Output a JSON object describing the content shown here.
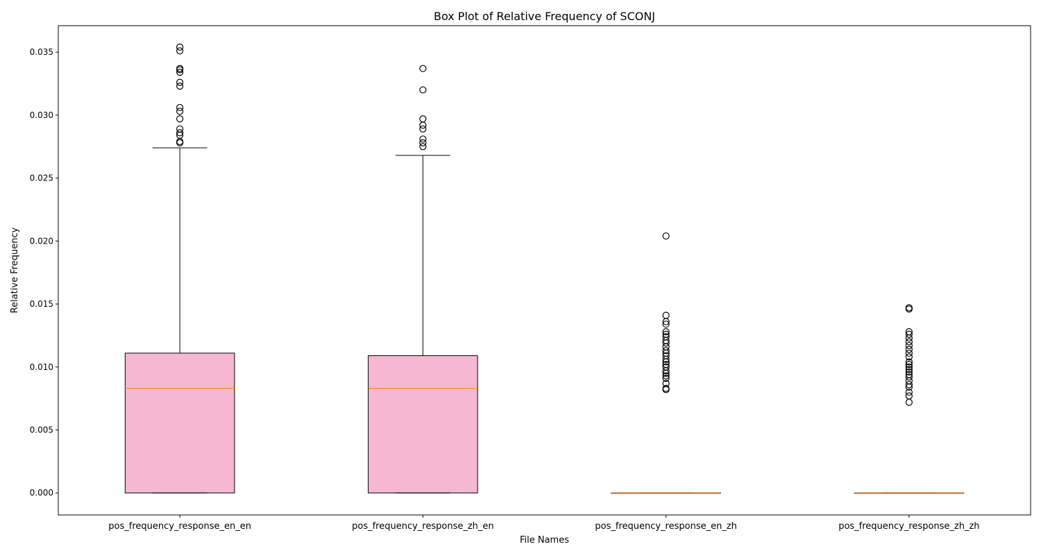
{
  "chart_data": {
    "type": "box",
    "title": "Box Plot of Relative Frequency of SCONJ",
    "xlabel": "File Names",
    "ylabel": "Relative Frequency",
    "ylim": [
      -0.00175,
      0.0371
    ],
    "yticks": [
      0.0,
      0.005,
      0.01,
      0.015,
      0.02,
      0.025,
      0.03,
      0.035
    ],
    "ytick_labels": [
      "0.000",
      "0.005",
      "0.010",
      "0.015",
      "0.020",
      "0.025",
      "0.030",
      "0.035"
    ],
    "grid": false,
    "legend": false,
    "colors": {
      "box_fill": "#f6b7d3",
      "box_edge": "#000000",
      "median": "#ff7f0e",
      "whisker": "#000000",
      "flier": "#000000",
      "axes": "#000000"
    },
    "categories": [
      "pos_frequency_response_en_en",
      "pos_frequency_response_zh_en",
      "pos_frequency_response_en_zh",
      "pos_frequency_response_zh_zh"
    ],
    "boxes": [
      {
        "category": "pos_frequency_response_en_en",
        "whisker_low": 0.0,
        "q1": 0.0,
        "median": 0.0083,
        "q3": 0.0111,
        "whisker_high": 0.0274,
        "fliers": [
          0.0354,
          0.0351,
          0.0337,
          0.0336,
          0.0334,
          0.0326,
          0.0323,
          0.0306,
          0.0303,
          0.0297,
          0.0289,
          0.0286,
          0.0284,
          0.0279,
          0.0278
        ]
      },
      {
        "category": "pos_frequency_response_zh_en",
        "whisker_low": 0.0,
        "q1": 0.0,
        "median": 0.0083,
        "q3": 0.0109,
        "whisker_high": 0.0268,
        "fliers": [
          0.0337,
          0.032,
          0.0297,
          0.0292,
          0.0289,
          0.0281,
          0.0278,
          0.0275
        ]
      },
      {
        "category": "pos_frequency_response_en_zh",
        "whisker_low": 0.0,
        "q1": 0.0,
        "median": 0.0,
        "q3": 0.0,
        "whisker_high": 0.0,
        "fliers": [
          0.0204,
          0.0141,
          0.0136,
          0.0134,
          0.0128,
          0.0126,
          0.0124,
          0.0121,
          0.0119,
          0.0116,
          0.0113,
          0.0111,
          0.0109,
          0.0106,
          0.0104,
          0.0102,
          0.01,
          0.0097,
          0.0095,
          0.0093,
          0.0091,
          0.0087,
          0.0083,
          0.0082
        ]
      },
      {
        "category": "pos_frequency_response_zh_zh",
        "whisker_low": 0.0,
        "q1": 0.0,
        "median": 0.0,
        "q3": 0.0,
        "whisker_high": 0.0,
        "fliers": [
          0.0147,
          0.0146,
          0.0128,
          0.0126,
          0.0123,
          0.012,
          0.0117,
          0.0114,
          0.0111,
          0.0108,
          0.0104,
          0.0102,
          0.01,
          0.0098,
          0.0096,
          0.0094,
          0.0092,
          0.0089,
          0.0086,
          0.0084,
          0.008,
          0.0077,
          0.0072
        ]
      }
    ]
  }
}
